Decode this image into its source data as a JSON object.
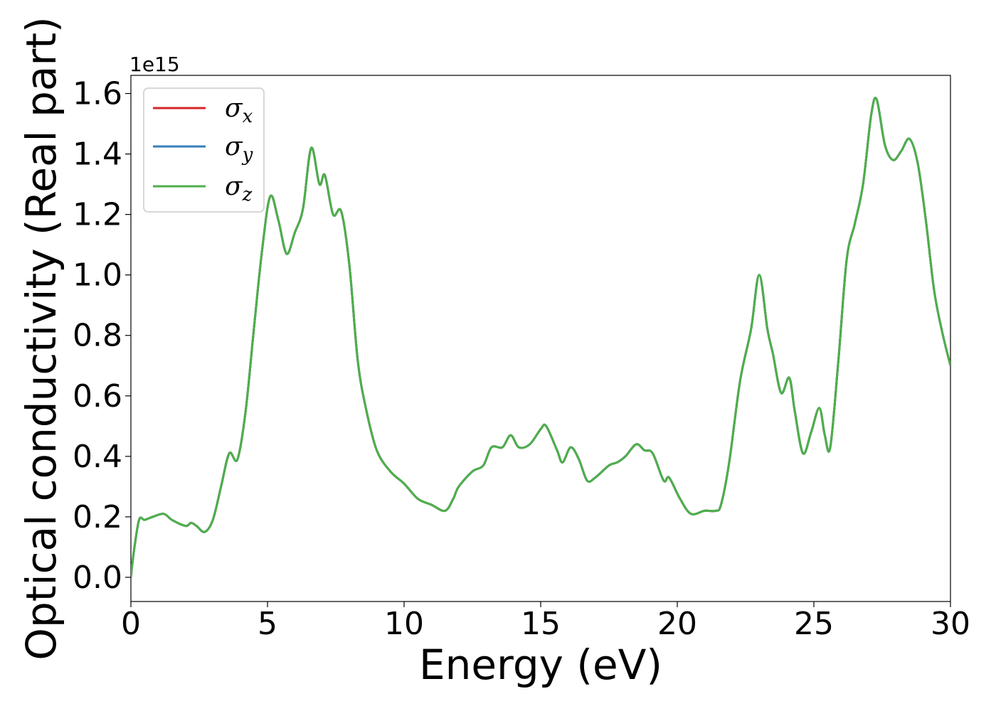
{
  "chart_data": {
    "type": "line",
    "xlabel": "Energy (eV)",
    "ylabel": "Optical conductivity (Real part)",
    "y_offset_label": "1e15",
    "xlim": [
      0,
      30
    ],
    "ylim": [
      -0.08,
      1.66
    ],
    "x_ticks": [
      0,
      5,
      10,
      15,
      20,
      25,
      30
    ],
    "y_ticks": [
      0.0,
      0.2,
      0.4,
      0.6,
      0.8,
      1.0,
      1.2,
      1.4,
      1.6
    ],
    "x_tick_labels": [
      "0",
      "5",
      "10",
      "15",
      "20",
      "25",
      "30"
    ],
    "y_tick_labels": [
      "0.0",
      "0.2",
      "0.4",
      "0.6",
      "0.8",
      "1.0",
      "1.2",
      "1.4",
      "1.6"
    ],
    "grid": false,
    "legend_position": "top-left",
    "x": [
      0,
      0.1,
      0.3,
      0.5,
      0.8,
      1.2,
      1.5,
      2.0,
      2.2,
      2.4,
      2.7,
      3.0,
      3.3,
      3.6,
      3.9,
      4.2,
      4.5,
      4.8,
      5.1,
      5.4,
      5.7,
      6.0,
      6.3,
      6.6,
      6.9,
      7.1,
      7.4,
      7.7,
      8.0,
      8.3,
      8.6,
      9.0,
      9.5,
      10.0,
      10.5,
      11.0,
      11.5,
      11.8,
      12.0,
      12.5,
      12.9,
      13.2,
      13.6,
      13.9,
      14.2,
      14.6,
      15.0,
      15.2,
      15.6,
      15.8,
      16.1,
      16.4,
      16.7,
      17.0,
      17.5,
      17.8,
      18.1,
      18.5,
      18.8,
      19.1,
      19.5,
      19.7,
      20.1,
      20.5,
      21.0,
      21.4,
      21.6,
      21.9,
      22.3,
      22.7,
      23.0,
      23.3,
      23.5,
      23.8,
      24.1,
      24.3,
      24.6,
      24.9,
      25.2,
      25.4,
      25.6,
      25.9,
      26.2,
      26.5,
      26.8,
      27.1,
      27.3,
      27.6,
      27.9,
      28.2,
      28.5,
      28.8,
      29.1,
      29.4,
      29.7,
      30.0
    ],
    "series": [
      {
        "name": "σx",
        "color": "#d62728",
        "values": [
          0.0,
          0.08,
          0.19,
          0.19,
          0.2,
          0.21,
          0.19,
          0.17,
          0.18,
          0.17,
          0.15,
          0.19,
          0.3,
          0.41,
          0.39,
          0.55,
          0.82,
          1.08,
          1.26,
          1.18,
          1.07,
          1.14,
          1.22,
          1.42,
          1.3,
          1.33,
          1.2,
          1.21,
          1.03,
          0.72,
          0.56,
          0.42,
          0.35,
          0.31,
          0.26,
          0.24,
          0.22,
          0.26,
          0.3,
          0.35,
          0.37,
          0.43,
          0.43,
          0.47,
          0.43,
          0.44,
          0.49,
          0.5,
          0.42,
          0.38,
          0.43,
          0.39,
          0.32,
          0.33,
          0.37,
          0.38,
          0.4,
          0.44,
          0.42,
          0.41,
          0.32,
          0.33,
          0.26,
          0.21,
          0.22,
          0.22,
          0.24,
          0.38,
          0.65,
          0.82,
          1.0,
          0.82,
          0.74,
          0.61,
          0.66,
          0.55,
          0.41,
          0.48,
          0.56,
          0.47,
          0.43,
          0.72,
          1.05,
          1.17,
          1.3,
          1.53,
          1.58,
          1.43,
          1.38,
          1.41,
          1.45,
          1.37,
          1.18,
          0.95,
          0.81,
          0.7
        ]
      },
      {
        "name": "σy",
        "color": "#377eb8",
        "values": [
          0.0,
          0.08,
          0.19,
          0.19,
          0.2,
          0.21,
          0.19,
          0.17,
          0.18,
          0.17,
          0.15,
          0.19,
          0.3,
          0.41,
          0.39,
          0.55,
          0.82,
          1.08,
          1.26,
          1.18,
          1.07,
          1.14,
          1.22,
          1.42,
          1.3,
          1.33,
          1.2,
          1.21,
          1.03,
          0.72,
          0.56,
          0.42,
          0.35,
          0.31,
          0.26,
          0.24,
          0.22,
          0.26,
          0.3,
          0.35,
          0.37,
          0.43,
          0.43,
          0.47,
          0.43,
          0.44,
          0.49,
          0.5,
          0.42,
          0.38,
          0.43,
          0.39,
          0.32,
          0.33,
          0.37,
          0.38,
          0.4,
          0.44,
          0.42,
          0.41,
          0.32,
          0.33,
          0.26,
          0.21,
          0.22,
          0.22,
          0.24,
          0.38,
          0.65,
          0.82,
          1.0,
          0.82,
          0.74,
          0.61,
          0.66,
          0.55,
          0.41,
          0.48,
          0.56,
          0.47,
          0.43,
          0.72,
          1.05,
          1.17,
          1.3,
          1.53,
          1.58,
          1.43,
          1.38,
          1.41,
          1.45,
          1.37,
          1.18,
          0.95,
          0.81,
          0.7
        ]
      },
      {
        "name": "σz",
        "color": "#4daf4a",
        "values": [
          0.0,
          0.08,
          0.19,
          0.19,
          0.2,
          0.21,
          0.19,
          0.17,
          0.18,
          0.17,
          0.15,
          0.19,
          0.3,
          0.41,
          0.39,
          0.55,
          0.82,
          1.08,
          1.26,
          1.18,
          1.07,
          1.14,
          1.22,
          1.42,
          1.3,
          1.33,
          1.2,
          1.21,
          1.03,
          0.72,
          0.56,
          0.42,
          0.35,
          0.31,
          0.26,
          0.24,
          0.22,
          0.26,
          0.3,
          0.35,
          0.37,
          0.43,
          0.43,
          0.47,
          0.43,
          0.44,
          0.49,
          0.5,
          0.42,
          0.38,
          0.43,
          0.39,
          0.32,
          0.33,
          0.37,
          0.38,
          0.4,
          0.44,
          0.42,
          0.41,
          0.32,
          0.33,
          0.26,
          0.21,
          0.22,
          0.22,
          0.24,
          0.38,
          0.65,
          0.82,
          1.0,
          0.82,
          0.74,
          0.61,
          0.66,
          0.55,
          0.41,
          0.48,
          0.56,
          0.47,
          0.43,
          0.72,
          1.05,
          1.17,
          1.3,
          1.53,
          1.58,
          1.43,
          1.38,
          1.41,
          1.45,
          1.37,
          1.18,
          0.95,
          0.81,
          0.7
        ]
      }
    ],
    "legend": [
      {
        "symbol": "σ",
        "subscript": "x",
        "color": "#d62728"
      },
      {
        "symbol": "σ",
        "subscript": "y",
        "color": "#377eb8"
      },
      {
        "symbol": "σ",
        "subscript": "z",
        "color": "#4daf4a"
      }
    ]
  }
}
